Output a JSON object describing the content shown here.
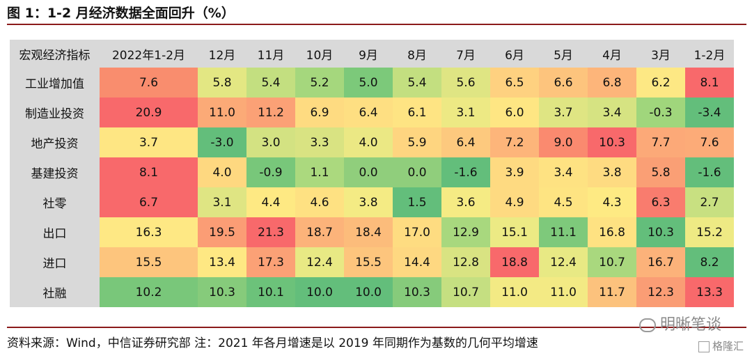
{
  "title": "图 1：1-2 月经济数据全面回升（%）",
  "table": {
    "corner": "宏观经济指标",
    "columns": [
      "2022年1-2月",
      "12月",
      "11月",
      "10月",
      "9月",
      "8月",
      "7月",
      "6月",
      "5月",
      "4月",
      "3月",
      "1-2月"
    ],
    "rows": [
      {
        "label": "工业增加值",
        "values": [
          "7.6",
          "5.8",
          "5.4",
          "5.2",
          "5.0",
          "5.4",
          "5.6",
          "6.5",
          "6.6",
          "6.8",
          "6.2",
          "8.1"
        ],
        "colors": [
          "#f98d6e",
          "#e3e783",
          "#c3df80",
          "#a5d77d",
          "#7cc97a",
          "#c3df80",
          "#dfe583",
          "#fed180",
          "#fdc47d",
          "#fdb57a",
          "#fde884",
          "#f8696b"
        ]
      },
      {
        "label": "制造业投资",
        "values": [
          "20.9",
          "11.0",
          "11.2",
          "6.9",
          "6.4",
          "6.1",
          "3.1",
          "6.0",
          "3.7",
          "3.4",
          "-0.3",
          "-3.4"
        ],
        "colors": [
          "#f8696b",
          "#fbaa77",
          "#fba176",
          "#fedb81",
          "#fedf82",
          "#fee483",
          "#ede984",
          "#fee683",
          "#dfe583",
          "#d6e382",
          "#a0d67c",
          "#63be7b"
        ]
      },
      {
        "label": "地产投资",
        "values": [
          "3.7",
          "-3.0",
          "3.0",
          "3.3",
          "4.0",
          "5.9",
          "6.4",
          "7.2",
          "9.0",
          "10.3",
          "7.7",
          "7.6"
        ],
        "colors": [
          "#fee683",
          "#63be7b",
          "#d3e282",
          "#d9e382",
          "#ebe884",
          "#fed580",
          "#fdc97e",
          "#fdb57a",
          "#fa8a6f",
          "#f8696b",
          "#fca978",
          "#fcab78"
        ]
      },
      {
        "label": "基建投资",
        "values": [
          "8.1",
          "4.0",
          "-0.9",
          "1.1",
          "0.0",
          "0.0",
          "-1.6",
          "3.9",
          "3.4",
          "3.8",
          "5.8",
          "-1.6"
        ],
        "colors": [
          "#f8696b",
          "#fed880",
          "#78c77a",
          "#abd97e",
          "#90ce7c",
          "#90ce7c",
          "#63be7b",
          "#feda81",
          "#fee282",
          "#fedb81",
          "#fa9f75",
          "#63be7b"
        ]
      },
      {
        "label": "社零",
        "values": [
          "6.7",
          "3.1",
          "4.4",
          "4.6",
          "3.8",
          "1.5",
          "3.6",
          "4.9",
          "4.5",
          "4.3",
          "6.3",
          "2.7"
        ],
        "colors": [
          "#f8696b",
          "#dfe583",
          "#fee983",
          "#fee182",
          "#f4eb84",
          "#63be7b",
          "#f5eb84",
          "#feda81",
          "#fee482",
          "#feea83",
          "#f97c6e",
          "#c8e081"
        ]
      },
      {
        "label": "出口",
        "values": [
          "16.3",
          "19.5",
          "21.3",
          "18.7",
          "18.4",
          "17.0",
          "12.9",
          "15.1",
          "11.1",
          "16.8",
          "10.3",
          "15.2"
        ],
        "colors": [
          "#fee884",
          "#fb9d75",
          "#f8696b",
          "#fcb37a",
          "#fcbc7b",
          "#fedc81",
          "#a8d87e",
          "#ecea84",
          "#7ec97b",
          "#fee282",
          "#63be7b",
          "#eeea84"
        ]
      },
      {
        "label": "进口",
        "values": [
          "15.5",
          "13.4",
          "17.3",
          "12.4",
          "15.5",
          "14.4",
          "12.8",
          "18.8",
          "12.4",
          "10.7",
          "16.7",
          "8.2"
        ],
        "colors": [
          "#fdc57d",
          "#fee883",
          "#fba176",
          "#e8e984",
          "#fdc57d",
          "#fed881",
          "#d9e382",
          "#f8696b",
          "#e8e984",
          "#a9d87e",
          "#fcb27a",
          "#63be7b"
        ]
      },
      {
        "label": "社融",
        "values": [
          "10.2",
          "10.3",
          "10.1",
          "10.0",
          "10.0",
          "10.3",
          "10.7",
          "11.0",
          "11.0",
          "11.7",
          "12.3",
          "13.3"
        ],
        "colors": [
          "#79c77a",
          "#86cb7b",
          "#6cc27a",
          "#63be7b",
          "#63be7b",
          "#86cb7b",
          "#c5df81",
          "#f3ea84",
          "#f3ea84",
          "#fcc27d",
          "#fa9d75",
          "#f8696b"
        ]
      }
    ]
  },
  "source": "资料来源：Wind，中信证券研究部 注：2021 年各月增速是以 2019 年同期作为基数的几何平均增速",
  "watermark": {
    "main": "明晰笔谈",
    "sub": "格隆汇"
  }
}
